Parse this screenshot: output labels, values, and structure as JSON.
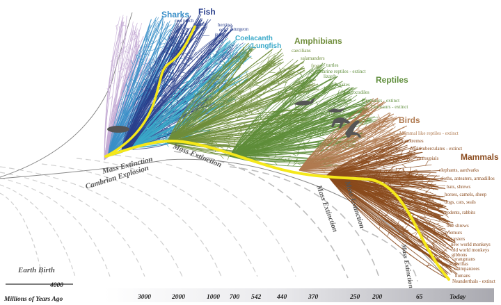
{
  "colors": {
    "sharks": "#3a8fc8",
    "fish": "#2a3f8c",
    "coelacanth": "#3aa9c9",
    "amphibians": "#6f8d3a",
    "reptiles": "#5e8d3a",
    "birds": "#b07a50",
    "mammals": "#8a4a1c",
    "lineage": "#f5e81a",
    "early": "#c3a9d3"
  },
  "groups": [
    {
      "id": "sharks",
      "label": "Sharks"
    },
    {
      "id": "fish",
      "label": "Fish"
    },
    {
      "id": "coelacanth",
      "label": "Coelacanth"
    },
    {
      "id": "lungfish",
      "label": "Lungfish"
    },
    {
      "id": "amphibians",
      "label": "Amphibians"
    },
    {
      "id": "reptiles",
      "label": "Reptiles"
    },
    {
      "id": "birds",
      "label": "Birds"
    },
    {
      "id": "mammals",
      "label": "Mammals"
    }
  ],
  "species": [
    {
      "id": "cod",
      "label": "cod"
    },
    {
      "id": "perch",
      "label": "perch"
    },
    {
      "id": "salmon",
      "label": "salmon"
    },
    {
      "id": "herring",
      "label": "herring"
    },
    {
      "id": "eels",
      "label": "eels"
    },
    {
      "id": "gars",
      "label": "gars"
    },
    {
      "id": "sturgeon",
      "label": "sturgeon"
    },
    {
      "id": "caecilians",
      "label": "caecilians"
    },
    {
      "id": "salamanders",
      "label": "salamanders"
    },
    {
      "id": "frogs",
      "label": "frogs"
    },
    {
      "id": "turtles",
      "label": "turtles"
    },
    {
      "id": "marine",
      "label": "Marine reptiles - extinct"
    },
    {
      "id": "lizards",
      "label": "lizards"
    },
    {
      "id": "snakes",
      "label": "snakes"
    },
    {
      "id": "crocodiles",
      "label": "crocodiles"
    },
    {
      "id": "pterosaurs",
      "label": "Pterosaurs - extinct"
    },
    {
      "id": "dinosaurs",
      "label": "Dinosaurs - extinct"
    },
    {
      "id": "mammal_like",
      "label": "Mammal like reptiles - extinct"
    },
    {
      "id": "monotremes",
      "label": "monotremes"
    },
    {
      "id": "multituberculates",
      "label": "Multituberculates - extinct"
    },
    {
      "id": "marsupials",
      "label": "marsupials"
    },
    {
      "id": "elephants",
      "label": "elephants, aardvarks"
    },
    {
      "id": "sloths",
      "label": "sloths, anteaters, armadillos"
    },
    {
      "id": "bats",
      "label": "bats, shrews"
    },
    {
      "id": "horses",
      "label": "horses, camels, sheep"
    },
    {
      "id": "dogs",
      "label": "dogs, cats, seals"
    },
    {
      "id": "rodents",
      "label": "rodents, rabbits"
    },
    {
      "id": "treeshrews",
      "label": "tree shrews"
    },
    {
      "id": "lemurs",
      "label": "lemurs"
    },
    {
      "id": "tarsiers",
      "label": "tarsiers"
    },
    {
      "id": "nwmonkeys",
      "label": "new world monkeys"
    },
    {
      "id": "owmonkeys",
      "label": "old world monkeys"
    },
    {
      "id": "gibbons",
      "label": "gibbons"
    },
    {
      "id": "orangutans",
      "label": "orangutans"
    },
    {
      "id": "gorillas",
      "label": "gorillas"
    },
    {
      "id": "chimpanzees",
      "label": "chimpanzees"
    },
    {
      "id": "humans",
      "label": "humans"
    },
    {
      "id": "neanderthals",
      "label": "Neanderthals - extinct"
    }
  ],
  "events": [
    {
      "id": "cambrian",
      "label": "Cambrian Explosion"
    },
    {
      "id": "mass1",
      "label": "Mass Extinction"
    },
    {
      "id": "mass2",
      "label": "Mass Extinction"
    },
    {
      "id": "mass3",
      "label": "Mass Extinction"
    },
    {
      "id": "mass4",
      "label": "Mass Extinction"
    },
    {
      "id": "mass5",
      "label": "Mass Extinction"
    }
  ],
  "earth_birth": "Earth Birth",
  "axis": {
    "title": "Millions of Years Ago",
    "first_tick": "4000",
    "ticks": [
      "3000",
      "2000",
      "1000",
      "700",
      "542",
      "440",
      "370",
      "250",
      "200",
      "65",
      "Today"
    ]
  }
}
